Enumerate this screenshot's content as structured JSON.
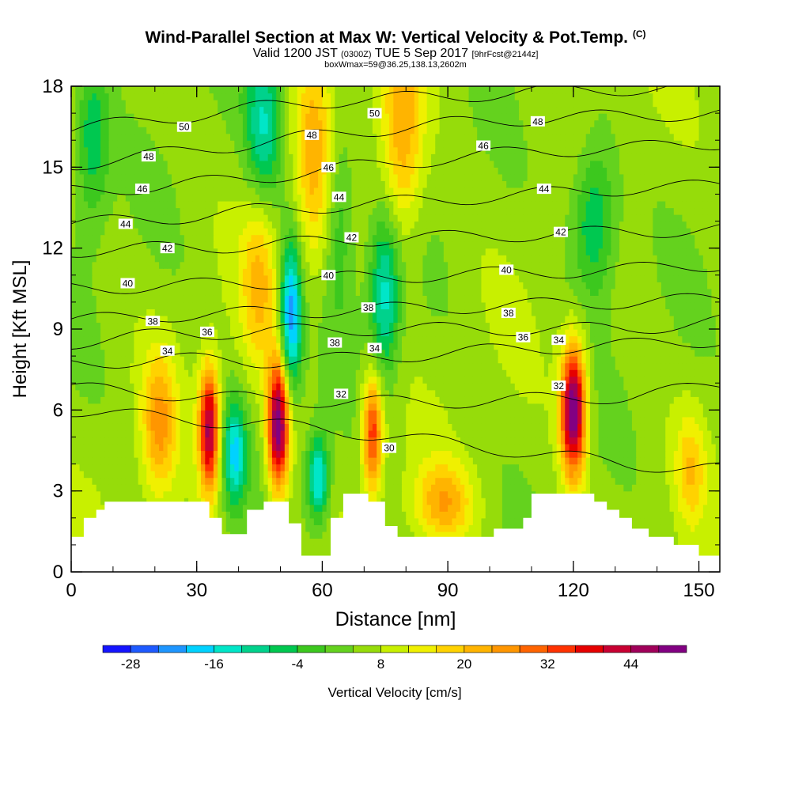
{
  "header": {
    "title": "Wind-Parallel Section at Max W: Vertical Velocity & Pot.Temp.",
    "title_unit": "(C)",
    "subtitle_valid": "Valid 1200 JST",
    "subtitle_utc": "(0300Z)",
    "subtitle_date": "TUE 5 Sep 2017",
    "subtitle_fcst": "[9hrFcst@2144z]",
    "subtitle2": "boxWmax=59@36.25,138.13,2602m"
  },
  "chart_data": {
    "type": "heatmap",
    "xlabel": "Distance [nm]",
    "ylabel": "Height [Kft MSL]",
    "xlim": [
      0,
      155
    ],
    "ylim": [
      0,
      18
    ],
    "x_ticks": [
      0,
      30,
      60,
      90,
      120,
      150
    ],
    "y_ticks": [
      0,
      3,
      6,
      9,
      12,
      15,
      18
    ],
    "colorbar": {
      "label": "Vertical Velocity [cm/s]",
      "tick_labels": [
        "-28",
        "-16",
        "-4",
        "8",
        "20",
        "32",
        "44"
      ],
      "tick_values": [
        -28,
        -16,
        -4,
        8,
        20,
        32,
        44
      ],
      "range": [
        -32,
        52
      ],
      "step": 4,
      "colors": [
        "#1414ff",
        "#1e5aff",
        "#1e96ff",
        "#00d2ff",
        "#00e6c8",
        "#00d28c",
        "#00c850",
        "#3cc81e",
        "#64d21e",
        "#96dc0a",
        "#c8f000",
        "#f0f000",
        "#ffd200",
        "#ffb400",
        "#ff9600",
        "#ff6400",
        "#ff3200",
        "#e60000",
        "#c80032",
        "#a0005a",
        "#820082"
      ]
    },
    "terrain_kft": [
      [
        0,
        1.3
      ],
      [
        3,
        1.3
      ],
      [
        3,
        2.0
      ],
      [
        6,
        2.0
      ],
      [
        6,
        2.3
      ],
      [
        8,
        2.3
      ],
      [
        8,
        2.6
      ],
      [
        33,
        2.6
      ],
      [
        33,
        2.0
      ],
      [
        36,
        2.0
      ],
      [
        36,
        1.4
      ],
      [
        42,
        1.4
      ],
      [
        42,
        2.3
      ],
      [
        46,
        2.3
      ],
      [
        46,
        2.6
      ],
      [
        52,
        2.6
      ],
      [
        52,
        1.8
      ],
      [
        55,
        1.8
      ],
      [
        55,
        0.6
      ],
      [
        62,
        0.6
      ],
      [
        62,
        2.0
      ],
      [
        65,
        2.0
      ],
      [
        65,
        2.9
      ],
      [
        71,
        2.9
      ],
      [
        71,
        2.6
      ],
      [
        75,
        2.6
      ],
      [
        75,
        1.7
      ],
      [
        78,
        1.7
      ],
      [
        78,
        1.3
      ],
      [
        101,
        1.3
      ],
      [
        101,
        1.6
      ],
      [
        108,
        1.6
      ],
      [
        108,
        2.0
      ],
      [
        110,
        2.0
      ],
      [
        110,
        2.9
      ],
      [
        125,
        2.9
      ],
      [
        125,
        2.6
      ],
      [
        128,
        2.6
      ],
      [
        128,
        2.3
      ],
      [
        131,
        2.3
      ],
      [
        131,
        2.0
      ],
      [
        134,
        2.0
      ],
      [
        134,
        1.6
      ],
      [
        138,
        1.6
      ],
      [
        138,
        1.3
      ],
      [
        144,
        1.3
      ],
      [
        144,
        1.0
      ],
      [
        150,
        1.0
      ],
      [
        150,
        0.6
      ],
      [
        155,
        0.6
      ]
    ],
    "velocity_features": [
      {
        "x": 33,
        "y": 5.3,
        "sx": 1.7,
        "sy": 1.6,
        "w": 40
      },
      {
        "x": 49.5,
        "y": 5.4,
        "sx": 1.8,
        "sy": 1.7,
        "w": 46
      },
      {
        "x": 72,
        "y": 5.2,
        "sx": 1.7,
        "sy": 1.5,
        "w": 30
      },
      {
        "x": 120,
        "y": 6.0,
        "sx": 2.1,
        "sy": 1.7,
        "w": 48
      },
      {
        "x": 21,
        "y": 5.5,
        "sx": 2.8,
        "sy": 1.8,
        "w": 18
      },
      {
        "x": 39,
        "y": 4.4,
        "sx": 2.0,
        "sy": 1.4,
        "w": -22
      },
      {
        "x": 59,
        "y": 3.5,
        "sx": 1.8,
        "sy": 1.1,
        "w": -24
      },
      {
        "x": 52.5,
        "y": 9.5,
        "sx": 1.8,
        "sy": 1.9,
        "w": -30
      },
      {
        "x": 75,
        "y": 10.3,
        "sx": 2.6,
        "sy": 2.1,
        "w": -20
      },
      {
        "x": 89,
        "y": 2.6,
        "sx": 4.8,
        "sy": 1.0,
        "w": 16
      },
      {
        "x": 148,
        "y": 3.8,
        "sx": 2.4,
        "sy": 1.4,
        "w": 12
      },
      {
        "x": 45,
        "y": 11.0,
        "sx": 3.0,
        "sy": 2.4,
        "w": 14
      },
      {
        "x": 58,
        "y": 15.5,
        "sx": 3.0,
        "sy": 3.0,
        "w": 14
      },
      {
        "x": 79,
        "y": 16.3,
        "sx": 3.5,
        "sy": 2.8,
        "w": 18
      },
      {
        "x": 5,
        "y": 16.0,
        "sx": 3.0,
        "sy": 2.2,
        "w": -14
      },
      {
        "x": 46,
        "y": 16.5,
        "sx": 3.0,
        "sy": 2.2,
        "w": -18
      },
      {
        "x": 125,
        "y": 13.0,
        "sx": 3.8,
        "sy": 2.0,
        "w": -16
      },
      {
        "x": 64,
        "y": 13.0,
        "sx": 2.5,
        "sy": 2.5,
        "w": -10
      }
    ],
    "theta_contours": [
      {
        "level": 30,
        "label": "30",
        "z": [
          6.0,
          5.7,
          5.5,
          5.2,
          4.8,
          4.4,
          4.0,
          3.8
        ]
      },
      {
        "level": 32,
        "label": "32",
        "z": [
          6.8,
          6.6,
          6.4,
          6.3,
          6.3,
          6.4,
          6.5,
          6.9
        ]
      },
      {
        "level": 34,
        "label": "34",
        "z": [
          7.7,
          7.9,
          7.8,
          7.9,
          8.1,
          8.3,
          8.4,
          8.6
        ]
      },
      {
        "level": 36,
        "label": "36",
        "z": [
          8.5,
          8.8,
          8.9,
          9.0,
          9.0,
          9.0,
          9.0,
          9.3
        ]
      },
      {
        "level": 38,
        "label": "38",
        "z": [
          9.3,
          9.5,
          9.6,
          9.7,
          9.8,
          9.9,
          10.0,
          10.1
        ]
      },
      {
        "level": 40,
        "label": "40",
        "z": [
          10.5,
          10.6,
          10.7,
          10.9,
          11.0,
          11.1,
          11.2,
          11.4
        ]
      },
      {
        "level": 42,
        "label": "42",
        "z": [
          11.9,
          12.0,
          12.1,
          12.3,
          12.4,
          12.5,
          12.6,
          12.7
        ]
      },
      {
        "level": 44,
        "label": "44",
        "z": [
          12.9,
          13.1,
          13.4,
          13.6,
          13.8,
          14.0,
          14.2,
          14.3
        ]
      },
      {
        "level": 46,
        "label": "46",
        "z": [
          14.1,
          14.3,
          14.6,
          15.0,
          15.3,
          15.6,
          15.7,
          15.9
        ]
      },
      {
        "level": 48,
        "label": "48",
        "z": [
          15.1,
          15.5,
          15.9,
          16.3,
          16.6,
          16.8,
          16.9,
          17.0
        ]
      },
      {
        "level": 50,
        "label": "50",
        "z": [
          16.4,
          16.8,
          17.2,
          17.5,
          17.6,
          17.8,
          17.9,
          18.0
        ]
      }
    ],
    "contour_labels": [
      {
        "text": "50",
        "x": 27,
        "y": 16.5
      },
      {
        "text": "48",
        "x": 18.5,
        "y": 15.4
      },
      {
        "text": "46",
        "x": 17,
        "y": 14.2
      },
      {
        "text": "44",
        "x": 13,
        "y": 12.9
      },
      {
        "text": "42",
        "x": 23,
        "y": 12.0
      },
      {
        "text": "40",
        "x": 13.5,
        "y": 10.7
      },
      {
        "text": "38",
        "x": 19.5,
        "y": 9.3
      },
      {
        "text": "34",
        "x": 23,
        "y": 8.2
      },
      {
        "text": "36",
        "x": 32.5,
        "y": 8.9
      },
      {
        "text": "48",
        "x": 57.5,
        "y": 16.2
      },
      {
        "text": "50",
        "x": 72.5,
        "y": 17.0
      },
      {
        "text": "46",
        "x": 61.5,
        "y": 15.0
      },
      {
        "text": "44",
        "x": 64,
        "y": 13.9
      },
      {
        "text": "42",
        "x": 67,
        "y": 12.4
      },
      {
        "text": "40",
        "x": 61.5,
        "y": 11.0
      },
      {
        "text": "38",
        "x": 71,
        "y": 9.8
      },
      {
        "text": "38",
        "x": 63,
        "y": 8.5
      },
      {
        "text": "34",
        "x": 72.5,
        "y": 8.3
      },
      {
        "text": "32",
        "x": 64.5,
        "y": 6.6
      },
      {
        "text": "30",
        "x": 76,
        "y": 4.6
      },
      {
        "text": "48",
        "x": 111.5,
        "y": 16.7
      },
      {
        "text": "46",
        "x": 98.5,
        "y": 15.8
      },
      {
        "text": "44",
        "x": 113,
        "y": 14.2
      },
      {
        "text": "42",
        "x": 117,
        "y": 12.6
      },
      {
        "text": "40",
        "x": 104,
        "y": 11.2
      },
      {
        "text": "38",
        "x": 104.5,
        "y": 9.6
      },
      {
        "text": "36",
        "x": 108,
        "y": 8.7
      },
      {
        "text": "34",
        "x": 116.5,
        "y": 8.6
      },
      {
        "text": "32",
        "x": 116.5,
        "y": 6.9
      }
    ]
  }
}
